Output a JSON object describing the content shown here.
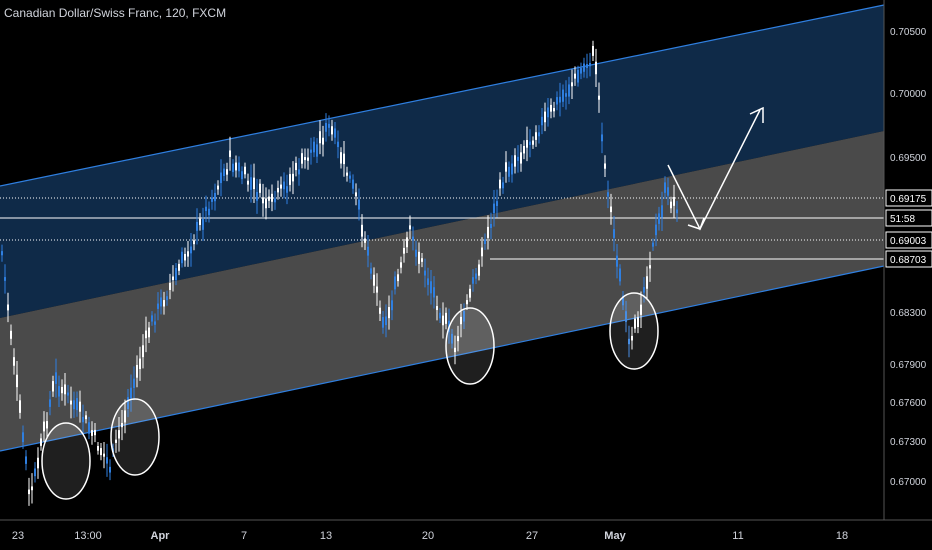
{
  "title": "Canadian Dollar/Swiss Franc, 120, FXCM",
  "colors": {
    "background": "#000000",
    "upper_channel_fill": "#0f2a48",
    "lower_channel_fill": "#4a4a4a",
    "channel_line": "#2f7fe0",
    "candle_up": "#2f7fe0",
    "candle_down": "#ffffff",
    "axis_text": "#d1d4dc",
    "level_line": "#ffffff",
    "circle": "#ffffff"
  },
  "chart_data": {
    "type": "candlestick",
    "y_axis": {
      "range": [
        0.6685,
        0.7075
      ],
      "ticks": [
        "0.70500",
        "0.70000",
        "0.69500",
        "0.68300",
        "0.67900",
        "0.67600",
        "0.67300",
        "0.67000"
      ],
      "price_labels": [
        "0.69175",
        "51:58",
        "0.69003",
        "0.68703"
      ]
    },
    "x_axis": {
      "ticks": [
        "23",
        "13:00",
        "Apr",
        "7",
        "13",
        "20",
        "27",
        "May",
        "11",
        "18"
      ]
    },
    "price_path": [
      {
        "x": "23",
        "y": 0.6885
      },
      {
        "x": "23",
        "y": 0.67
      },
      {
        "x": "13:00",
        "y": 0.679
      },
      {
        "x": "13:00",
        "y": 0.676
      },
      {
        "x": "13:00",
        "y": 0.6725
      },
      {
        "x": "Apr",
        "y": 0.683
      },
      {
        "x": "Apr",
        "y": 0.689
      },
      {
        "x": "7",
        "y": 0.6955
      },
      {
        "x": "7",
        "y": 0.692
      },
      {
        "x": "13",
        "y": 0.698
      },
      {
        "x": "13",
        "y": 0.693
      },
      {
        "x": "13",
        "y": 0.683
      },
      {
        "x": "20",
        "y": 0.69
      },
      {
        "x": "20",
        "y": 0.6815
      },
      {
        "x": "27",
        "y": 0.6945
      },
      {
        "x": "27",
        "y": 0.7035
      },
      {
        "x": "May",
        "y": 0.695
      },
      {
        "x": "May",
        "y": 0.681
      },
      {
        "x": "May",
        "y": 0.693
      },
      {
        "x": "May",
        "y": 0.692
      }
    ],
    "annotations": [
      "upward parallel channel (upper band blue, lower band grey)",
      "four white circles marking channel-bottom touches",
      "white arrow projecting down then up"
    ]
  }
}
